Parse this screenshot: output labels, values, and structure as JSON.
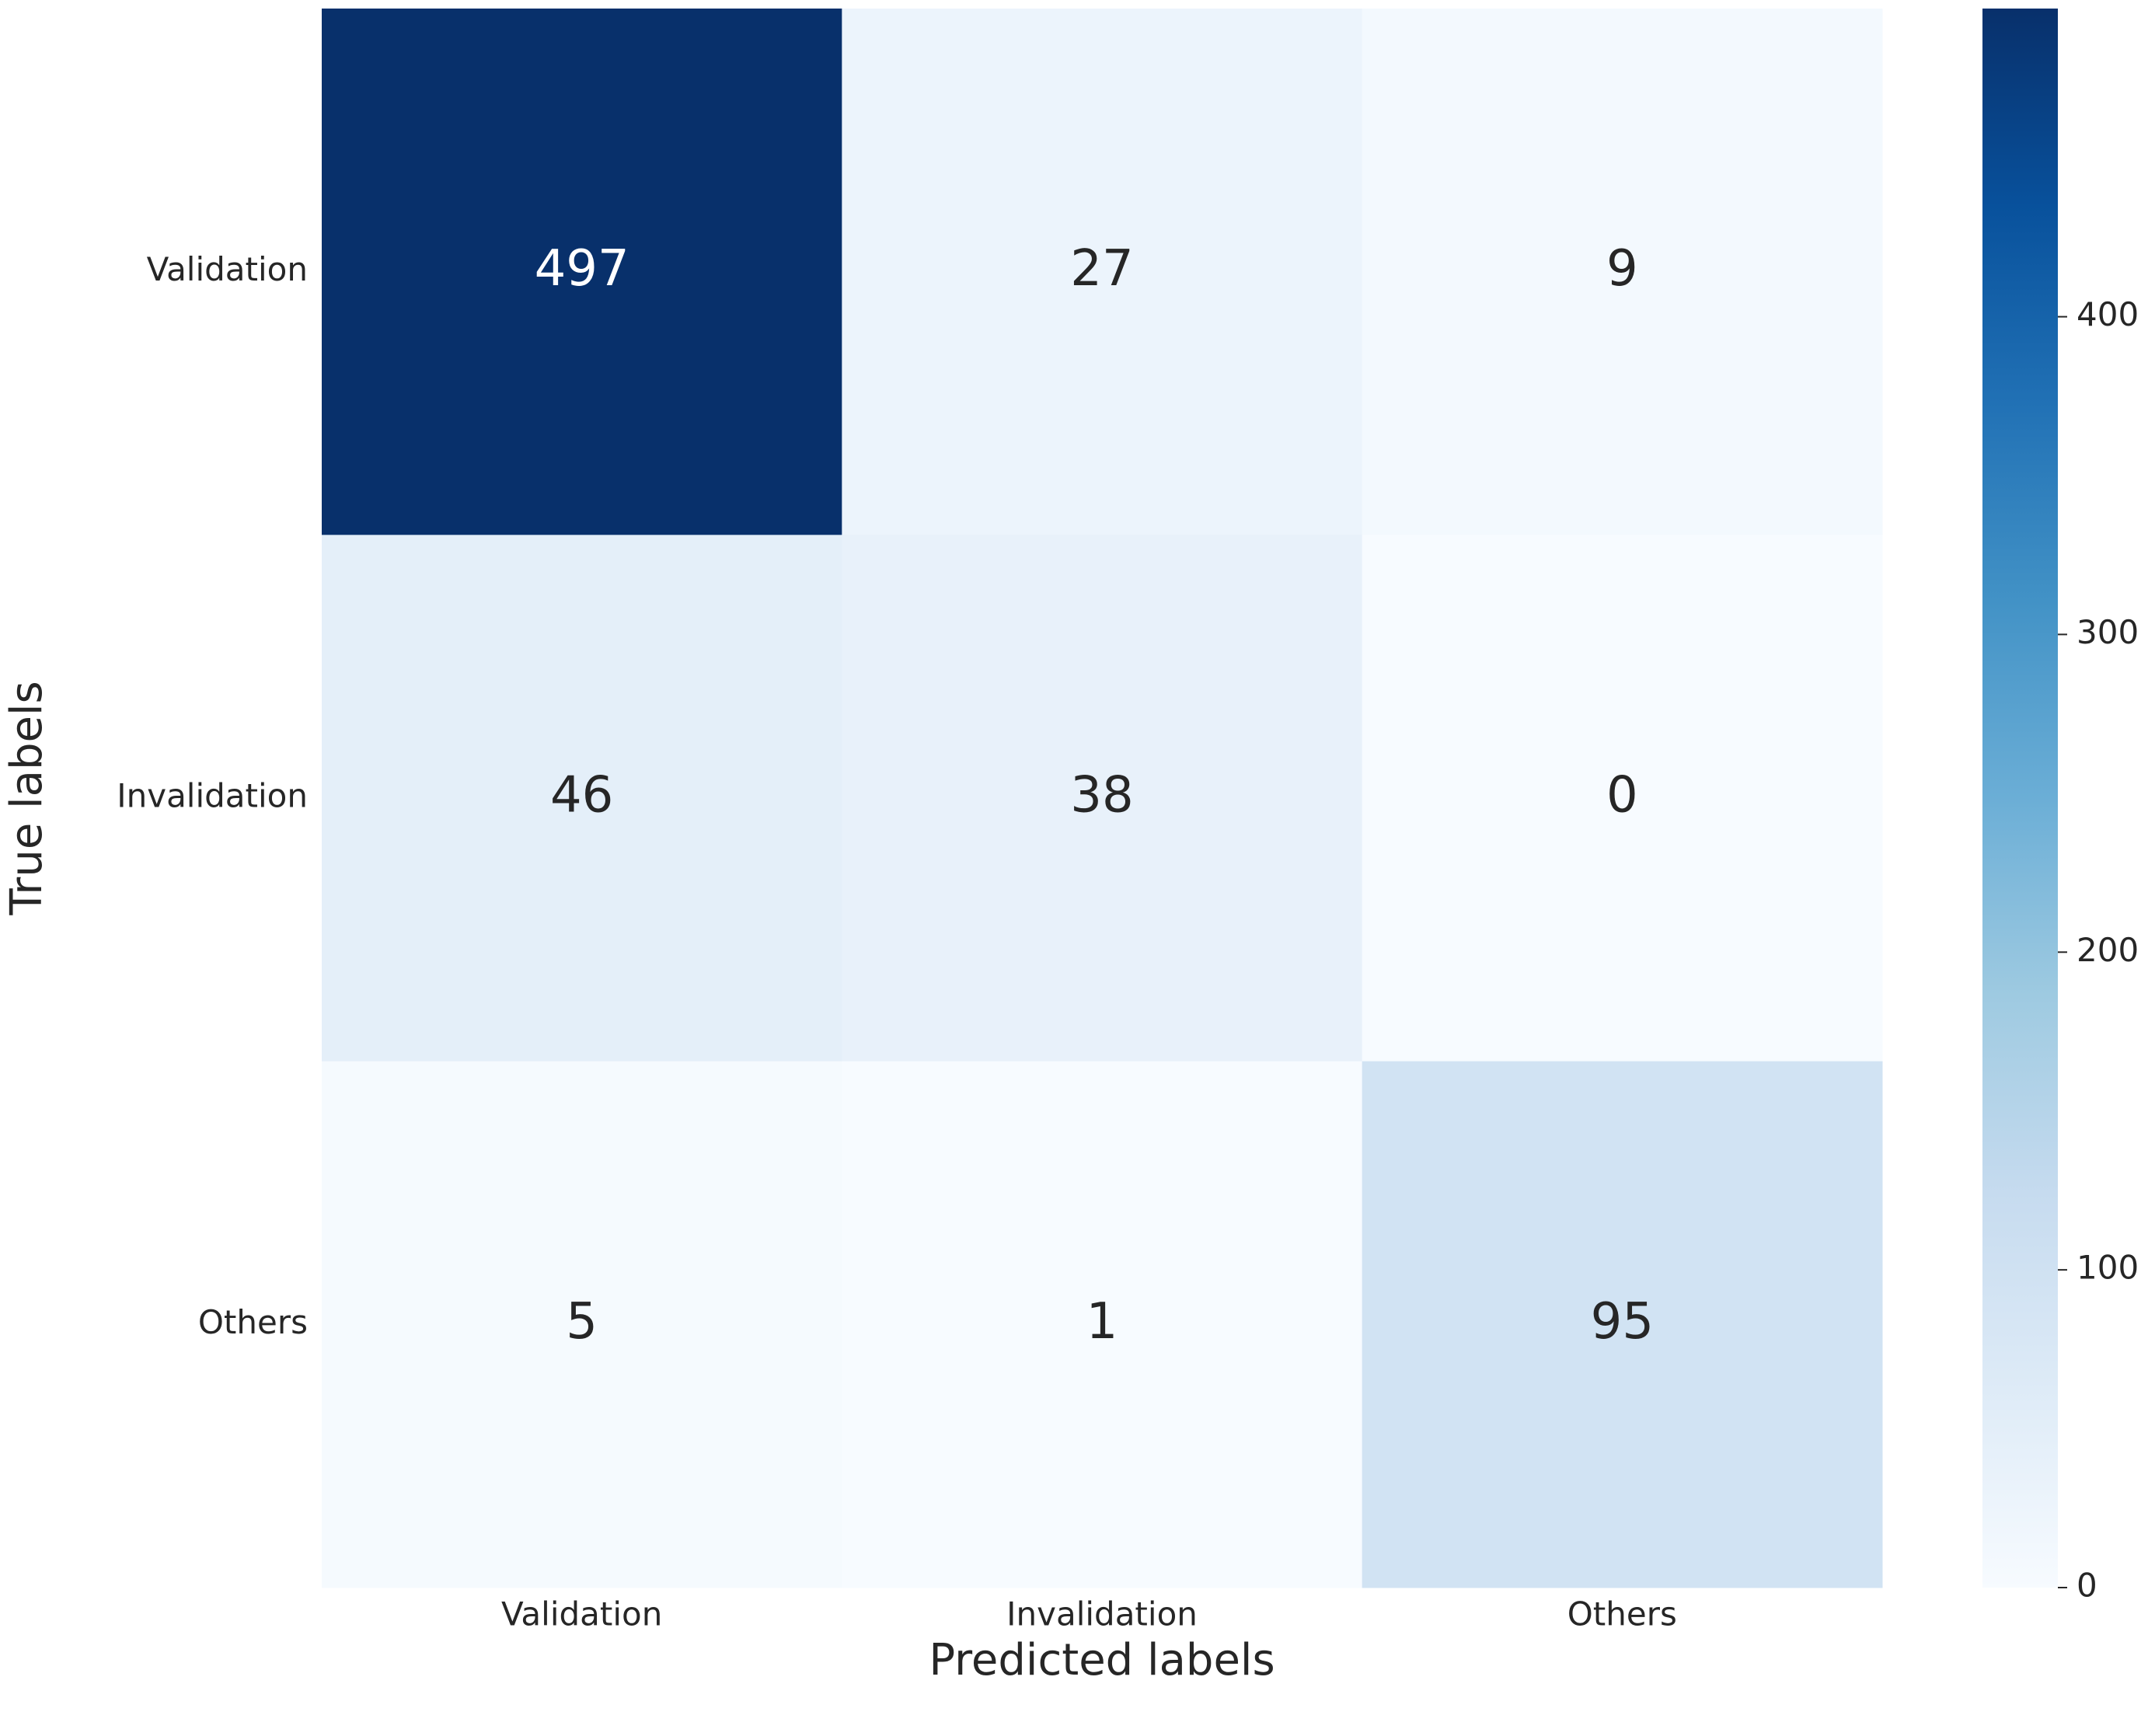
{
  "chart_data": {
    "type": "heatmap",
    "x_categories": [
      "Validation",
      "Invalidation",
      "Others"
    ],
    "y_categories": [
      "Validation",
      "Invalidation",
      "Others"
    ],
    "values": [
      [
        497,
        27,
        9
      ],
      [
        46,
        38,
        0
      ],
      [
        5,
        1,
        95
      ]
    ],
    "xlabel": "Predicted labels",
    "ylabel": "True labels",
    "colormap": "Blues",
    "colorbar": true,
    "clim": [
      0,
      497
    ],
    "cticks": [
      0,
      100,
      200,
      300,
      400
    ]
  }
}
